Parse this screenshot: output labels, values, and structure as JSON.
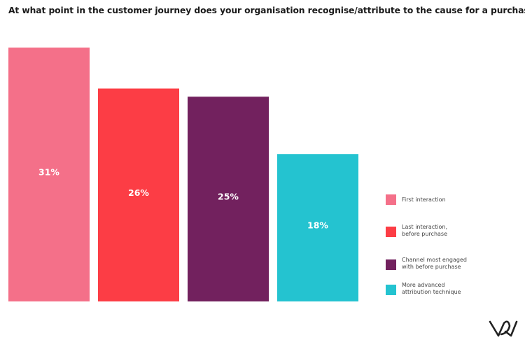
{
  "chart_data": {
    "type": "bar",
    "title": "At what point in the customer journey does your organisation recognise/attribute to the cause for a purchase?",
    "categories": [
      "First interaction",
      "Last interaction, before purchase",
      "Channel most engaged with before purchase",
      "More advanced attribution technique"
    ],
    "legend_lines": [
      [
        "First interaction"
      ],
      [
        "Last interaction,",
        "before purchase"
      ],
      [
        "Channel most engaged",
        "with before purchase"
      ],
      [
        "More advanced",
        "attribution technique"
      ]
    ],
    "values": [
      31,
      26,
      25,
      18
    ],
    "labels": [
      "31%",
      "26%",
      "25%",
      "18%"
    ],
    "colors": [
      "#F47089",
      "#FC3D45",
      "#72215E",
      "#24C3D0"
    ],
    "ylim": [
      0,
      31
    ],
    "grid": false,
    "legend": "right"
  },
  "logo": "W"
}
